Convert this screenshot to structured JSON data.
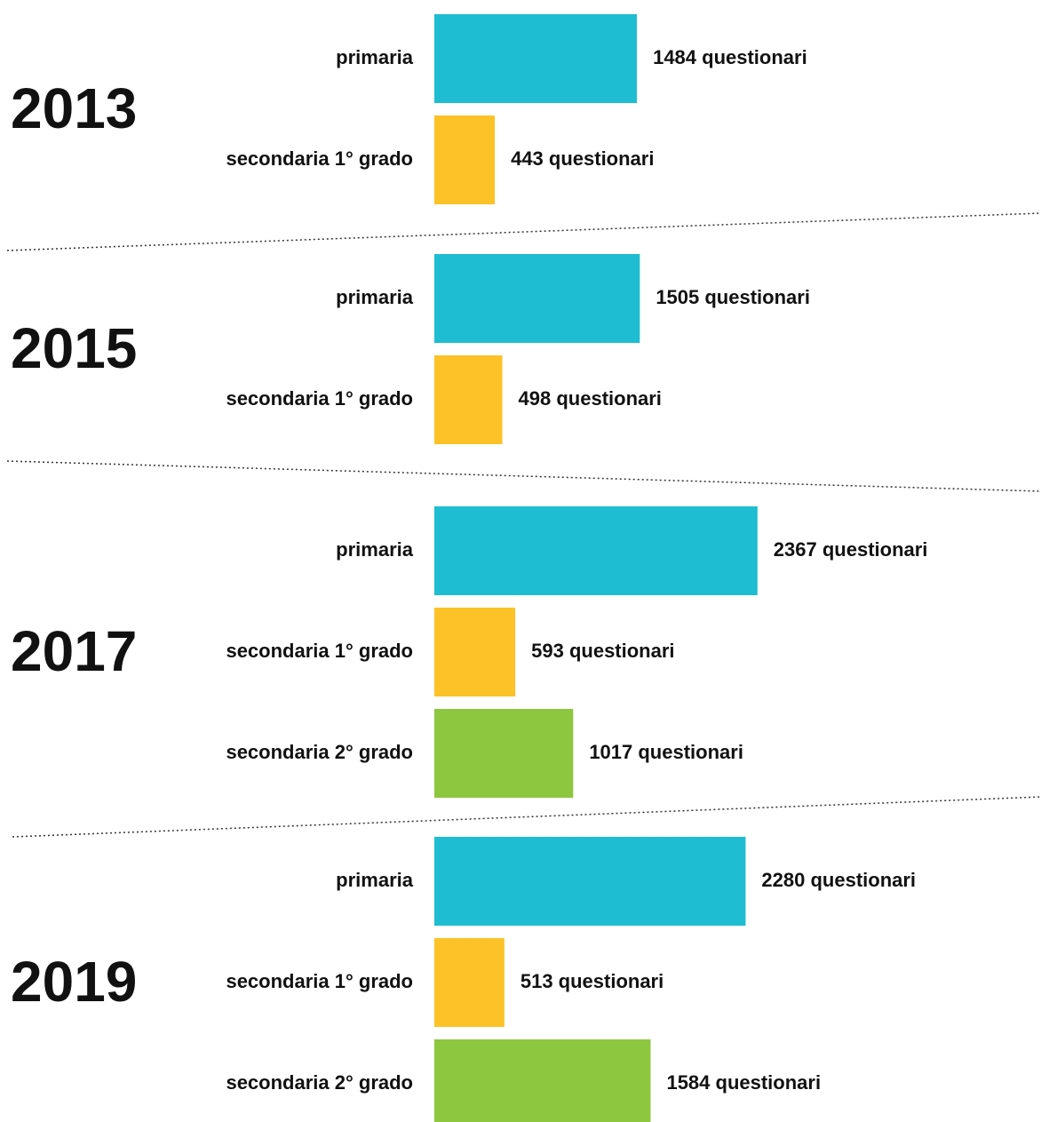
{
  "chart_data": [
    {
      "type": "bar",
      "title": "2013",
      "categories": [
        "primaria",
        "secondaria 1° grado"
      ],
      "values": [
        1484,
        443
      ],
      "value_labels": [
        "1484 questionari",
        "443 questionari"
      ],
      "colors": [
        "#1ebdd1",
        "#fcc227"
      ]
    },
    {
      "type": "bar",
      "title": "2015",
      "categories": [
        "primaria",
        "secondaria 1° grado"
      ],
      "values": [
        1505,
        498
      ],
      "value_labels": [
        "1505 questionari",
        "498 questionari"
      ],
      "colors": [
        "#1ebdd1",
        "#fcc227"
      ]
    },
    {
      "type": "bar",
      "title": "2017",
      "categories": [
        "primaria",
        "secondaria 1° grado",
        "secondaria 2° grado"
      ],
      "values": [
        2367,
        593,
        1017
      ],
      "value_labels": [
        "2367 questionari",
        "593 questionari",
        "1017 questionari"
      ],
      "colors": [
        "#1ebdd1",
        "#fcc227",
        "#8dc63f"
      ]
    },
    {
      "type": "bar",
      "title": "2019",
      "categories": [
        "primaria",
        "secondaria 1° grado",
        "secondaria 2° grado"
      ],
      "values": [
        2280,
        513,
        1584
      ],
      "value_labels": [
        "2280 questionari",
        "513 questionari",
        "1584 questionari"
      ],
      "colors": [
        "#1ebdd1",
        "#fcc227",
        "#8dc63f"
      ]
    }
  ]
}
